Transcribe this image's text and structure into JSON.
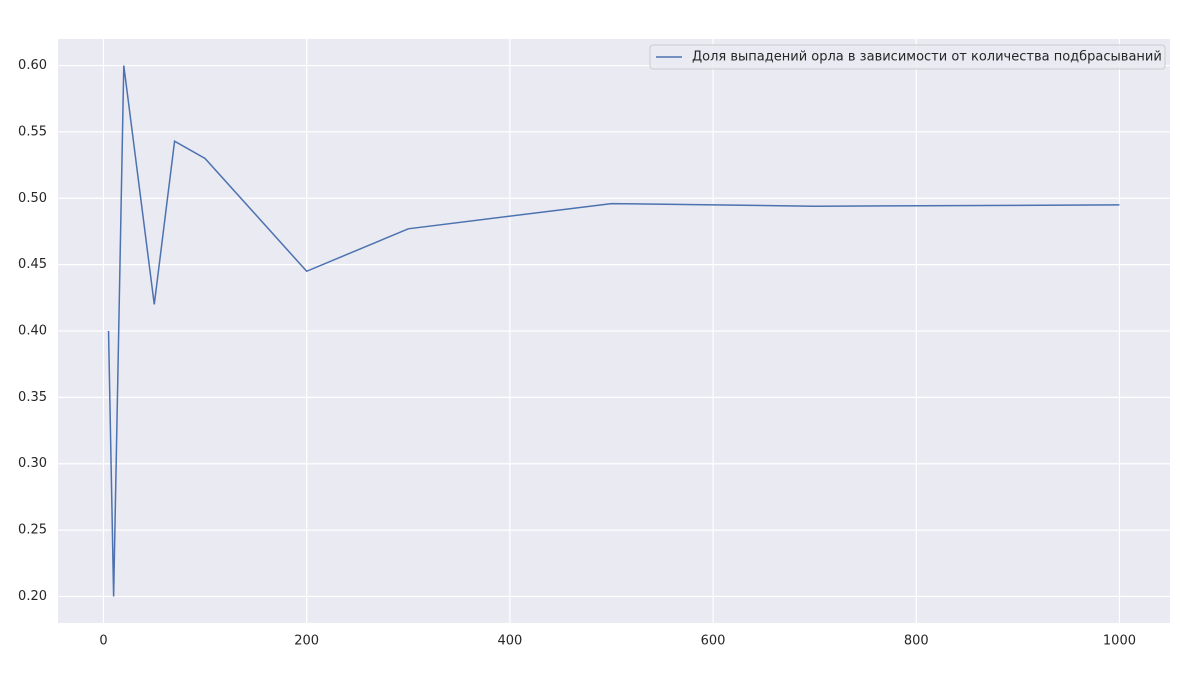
{
  "chart_data": {
    "type": "line",
    "x": [
      5,
      10,
      20,
      50,
      70,
      100,
      200,
      300,
      500,
      700,
      1000
    ],
    "series": [
      {
        "name": "Доля выпадений орла в зависимости от количества подбрасываний",
        "color": "#4c72b0",
        "values": [
          0.4,
          0.2,
          0.6,
          0.42,
          0.543,
          0.53,
          0.445,
          0.477,
          0.496,
          0.494,
          0.495
        ]
      }
    ],
    "xlim": [
      -44.75,
      1049.75
    ],
    "xticks": [
      0,
      200,
      400,
      600,
      800,
      1000
    ],
    "ylim": [
      0.18,
      0.62
    ],
    "yticks": [
      {
        "value": 0.2,
        "label": "0.20"
      },
      0.25,
      {
        "value": 0.3,
        "label": "0.30"
      },
      0.35,
      {
        "value": 0.4,
        "label": "0.40"
      },
      0.45,
      {
        "value": 0.5,
        "label": "0.50"
      },
      0.55,
      {
        "value": 0.6,
        "label": "0.60"
      }
    ],
    "grid": true,
    "legend": "upper right"
  }
}
